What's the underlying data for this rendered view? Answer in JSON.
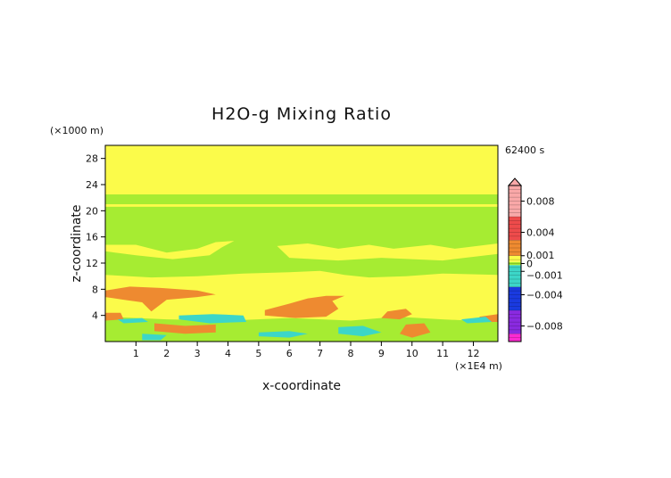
{
  "chart_data": {
    "type": "heatmap",
    "title": "H2O-g Mixing Ratio",
    "xlabel": "x-coordinate",
    "ylabel": "z-coordinate",
    "x_unit": "(×1E4 m)",
    "y_unit": "(×1000 m)",
    "time_label": "62400 s",
    "xlim": [
      0,
      12.8
    ],
    "ylim": [
      0,
      30
    ],
    "x_ticks": [
      "1",
      "2",
      "3",
      "4",
      "5",
      "6",
      "7",
      "8",
      "9",
      "10",
      "11",
      "12"
    ],
    "y_ticks": [
      "4",
      "8",
      "12",
      "16",
      "20",
      "24",
      "28"
    ],
    "colorbar": {
      "ticks": [
        "0.008",
        "0.004",
        "0.001",
        "0",
        "−0.001",
        "−0.004",
        "−0.008"
      ],
      "range": [
        -0.01,
        0.01
      ],
      "colors": {
        "high": "#f9a8a8",
        "positive_mid": "#ee4b4b",
        "positive_low": "#ee8a30",
        "near_zero_pos": "#fbfb4a",
        "zero": "#a6ec32",
        "near_zero_neg": "#3cd6c8",
        "negative_mid": "#1a3ae0",
        "negative_low": "#8a2ae0",
        "min": "#ff2ad2"
      }
    },
    "regions": [
      {
        "value": 0.0005,
        "points": [
          [
            0,
            22.5
          ],
          [
            12.8,
            22.5
          ],
          [
            12.8,
            30
          ],
          [
            0,
            30
          ]
        ]
      },
      {
        "value": 0.0005,
        "points": [
          [
            0,
            20.6
          ],
          [
            12.8,
            20.6
          ],
          [
            12.8,
            21.0
          ],
          [
            0,
            21.0
          ]
        ]
      },
      {
        "value": 0.0005,
        "points": [
          [
            0,
            14.8
          ],
          [
            1.0,
            14.8
          ],
          [
            2.0,
            13.6
          ],
          [
            3.0,
            14.2
          ],
          [
            3.6,
            15.2
          ],
          [
            4.2,
            15.4
          ],
          [
            3.8,
            14.4
          ],
          [
            3.4,
            13.2
          ],
          [
            2.2,
            12.6
          ],
          [
            1.0,
            13.2
          ],
          [
            0,
            13.8
          ]
        ]
      },
      {
        "value": 0.0005,
        "points": [
          [
            5.6,
            14.6
          ],
          [
            6.6,
            15.0
          ],
          [
            7.6,
            14.2
          ],
          [
            8.6,
            14.8
          ],
          [
            9.4,
            14.2
          ],
          [
            10.6,
            14.8
          ],
          [
            11.4,
            14.2
          ],
          [
            12.8,
            15.0
          ],
          [
            12.8,
            13.4
          ],
          [
            11.0,
            12.4
          ],
          [
            9.0,
            12.8
          ],
          [
            7.6,
            12.4
          ],
          [
            6.0,
            12.8
          ]
        ]
      },
      {
        "value": 0.0005,
        "points": [
          [
            0,
            10.2
          ],
          [
            1.5,
            9.8
          ],
          [
            3.0,
            10.0
          ],
          [
            4.5,
            10.4
          ],
          [
            6.0,
            10.6
          ],
          [
            7.0,
            10.8
          ],
          [
            7.8,
            10.2
          ],
          [
            8.6,
            9.8
          ],
          [
            9.8,
            10.0
          ],
          [
            11.0,
            10.4
          ],
          [
            12.8,
            10.2
          ],
          [
            12.8,
            3.0
          ],
          [
            11.0,
            3.4
          ],
          [
            9.5,
            3.8
          ],
          [
            8.0,
            3.2
          ],
          [
            6.0,
            3.6
          ],
          [
            4.0,
            3.2
          ],
          [
            2.0,
            3.4
          ],
          [
            0,
            3.8
          ]
        ]
      },
      {
        "value": 0.0015,
        "points": [
          [
            0,
            7.8
          ],
          [
            0.8,
            8.4
          ],
          [
            1.8,
            8.2
          ],
          [
            3.0,
            7.8
          ],
          [
            3.6,
            7.2
          ],
          [
            3.0,
            6.8
          ],
          [
            2.0,
            6.4
          ],
          [
            1.5,
            4.6
          ],
          [
            1.2,
            6.0
          ],
          [
            0.6,
            6.4
          ],
          [
            0,
            6.8
          ]
        ]
      },
      {
        "value": 0.0015,
        "points": [
          [
            5.2,
            4.8
          ],
          [
            6.0,
            5.8
          ],
          [
            6.6,
            6.6
          ],
          [
            7.2,
            7.0
          ],
          [
            7.8,
            7.0
          ],
          [
            7.4,
            6.2
          ],
          [
            7.6,
            5.0
          ],
          [
            7.2,
            3.8
          ],
          [
            6.2,
            3.6
          ],
          [
            5.2,
            4.0
          ]
        ]
      },
      {
        "value": 0.0015,
        "points": [
          [
            9.2,
            4.6
          ],
          [
            9.8,
            5.0
          ],
          [
            10.0,
            4.2
          ],
          [
            9.6,
            3.4
          ],
          [
            9.0,
            3.6
          ]
        ]
      },
      {
        "value": 0.0015,
        "points": [
          [
            0,
            4.4
          ],
          [
            0.5,
            4.4
          ],
          [
            0.6,
            3.4
          ],
          [
            0,
            3.2
          ]
        ]
      },
      {
        "value": 0.0015,
        "points": [
          [
            1.6,
            2.8
          ],
          [
            2.6,
            2.4
          ],
          [
            3.6,
            2.6
          ],
          [
            3.6,
            1.4
          ],
          [
            2.6,
            1.2
          ],
          [
            1.6,
            1.6
          ]
        ]
      },
      {
        "value": 0.0015,
        "points": [
          [
            9.8,
            2.6
          ],
          [
            10.4,
            2.8
          ],
          [
            10.6,
            1.4
          ],
          [
            10.0,
            0.6
          ],
          [
            9.6,
            1.2
          ]
        ]
      },
      {
        "value": 0.0015,
        "points": [
          [
            12.2,
            3.8
          ],
          [
            12.8,
            4.2
          ],
          [
            12.8,
            3.0
          ],
          [
            12.2,
            3.0
          ]
        ]
      },
      {
        "value": -0.0005,
        "points": [
          [
            2.4,
            4.0
          ],
          [
            3.5,
            4.2
          ],
          [
            4.5,
            4.0
          ],
          [
            4.6,
            3.0
          ],
          [
            3.4,
            2.8
          ],
          [
            2.4,
            3.4
          ]
        ]
      },
      {
        "value": -0.0005,
        "points": [
          [
            5.0,
            1.4
          ],
          [
            6.0,
            1.6
          ],
          [
            6.6,
            1.2
          ],
          [
            6.0,
            0.6
          ],
          [
            5.0,
            0.8
          ]
        ]
      },
      {
        "value": -0.0005,
        "points": [
          [
            7.6,
            2.2
          ],
          [
            8.4,
            2.4
          ],
          [
            9.0,
            1.4
          ],
          [
            8.4,
            0.8
          ],
          [
            7.6,
            1.2
          ]
        ]
      },
      {
        "value": -0.0005,
        "points": [
          [
            1.2,
            1.2
          ],
          [
            2.0,
            1.0
          ],
          [
            1.8,
            0.2
          ],
          [
            1.2,
            0.2
          ]
        ]
      },
      {
        "value": -0.0005,
        "points": [
          [
            0.4,
            3.4
          ],
          [
            1.2,
            3.6
          ],
          [
            1.4,
            3.0
          ],
          [
            0.6,
            2.8
          ]
        ]
      },
      {
        "value": -0.0005,
        "points": [
          [
            11.6,
            3.4
          ],
          [
            12.4,
            3.8
          ],
          [
            12.6,
            3.0
          ],
          [
            11.8,
            2.8
          ]
        ]
      }
    ]
  }
}
